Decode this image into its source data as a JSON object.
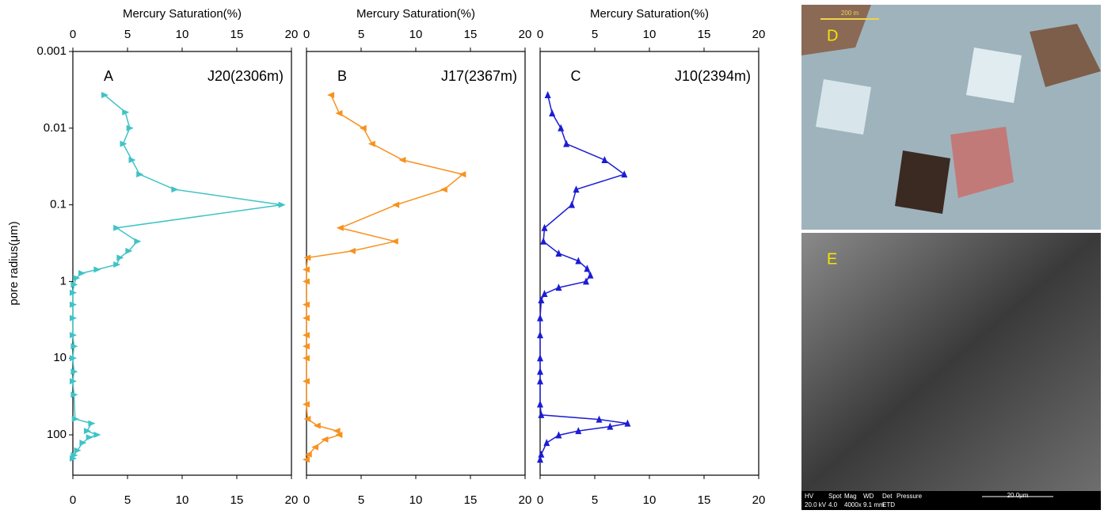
{
  "chart_data": [
    {
      "type": "line",
      "xlabel": "Mercury Saturation(%)",
      "ylabel": "pore radius(μm)",
      "xlim": [
        0,
        20
      ],
      "xticks": [
        0,
        5,
        10,
        15,
        20
      ],
      "ylim": [
        0.001,
        336
      ],
      "yticks": [
        0.001,
        0.01,
        0.1,
        1,
        10,
        100
      ],
      "log_y": true,
      "y_inverted": true,
      "marker": "triangle-right",
      "annotations": [
        "A",
        "J20(2306m)"
      ],
      "series": [
        {
          "color": "#3fc3c6",
          "x": [
            2.9,
            4.8,
            5.2,
            4.6,
            5.4,
            6.1,
            9.3,
            19.1,
            4.0,
            5.9,
            5.1,
            4.3,
            4.0,
            2.2,
            0.8,
            0.3,
            0.1,
            0,
            0,
            0,
            0,
            0.1,
            0,
            0.1,
            0,
            0.1,
            0.2,
            1.7,
            1.3,
            2.2,
            1.5,
            0.9,
            0.4,
            0.1,
            0
          ],
          "y": [
            0.0037,
            0.0062,
            0.01,
            0.016,
            0.026,
            0.04,
            0.063,
            0.1,
            0.2,
            0.3,
            0.4,
            0.49,
            0.6,
            0.7,
            0.78,
            0.9,
            1.1,
            1.4,
            2,
            3,
            5,
            7,
            10,
            15,
            20,
            30,
            62,
            71,
            89,
            100,
            108,
            127,
            160,
            185,
            203
          ]
        }
      ]
    },
    {
      "type": "line",
      "xlabel": "Mercury Saturation(%)",
      "xlim": [
        0,
        20
      ],
      "xticks": [
        0,
        5,
        10,
        15,
        20
      ],
      "ylim": [
        0.001,
        336
      ],
      "log_y": true,
      "y_inverted": true,
      "marker": "triangle-left",
      "annotations": [
        "B",
        "J17(2367m)"
      ],
      "series": [
        {
          "color": "#f7921e",
          "x": [
            2.25,
            3.0,
            5.2,
            6.0,
            8.8,
            14.3,
            12.6,
            8.2,
            3.1,
            8.1,
            4.2,
            0.1,
            0,
            0,
            0,
            0,
            0,
            0,
            0,
            0,
            0,
            0.1,
            1.0,
            2.8,
            3.0,
            1.7,
            0.8,
            0.2,
            0
          ],
          "y": [
            0.0037,
            0.0064,
            0.01,
            0.016,
            0.026,
            0.04,
            0.063,
            0.1,
            0.2,
            0.3,
            0.4,
            0.49,
            0.7,
            1,
            2,
            3,
            5,
            7,
            10,
            20,
            40,
            62,
            76,
            89,
            100,
            115,
            145,
            180,
            210
          ]
        }
      ]
    },
    {
      "type": "line",
      "xlabel": "Mercury Saturation(%)",
      "xlim": [
        0,
        20
      ],
      "xticks": [
        0,
        5,
        10,
        15,
        20
      ],
      "ylim": [
        0.001,
        336
      ],
      "log_y": true,
      "y_inverted": true,
      "marker": "triangle-up",
      "annotations": [
        "C",
        "J10(2394m)"
      ],
      "series": [
        {
          "color": "#1c1cd4",
          "x": [
            0.7,
            1.1,
            1.9,
            2.4,
            5.9,
            7.7,
            3.3,
            2.9,
            0.4,
            0.3,
            1.7,
            3.5,
            4.3,
            4.6,
            4.2,
            1.7,
            0.4,
            0.1,
            0,
            0,
            0,
            0,
            0,
            0,
            0.1,
            5.4,
            8.0,
            6.4,
            3.5,
            1.7,
            0.6,
            0.1,
            0
          ],
          "y": [
            0.0037,
            0.0064,
            0.01,
            0.016,
            0.026,
            0.04,
            0.063,
            0.1,
            0.2,
            0.3,
            0.43,
            0.54,
            0.68,
            0.83,
            1,
            1.2,
            1.45,
            1.75,
            3,
            5,
            10,
            15,
            20,
            40,
            55,
            63,
            71,
            78,
            89,
            101,
            127,
            180,
            210
          ]
        }
      ]
    }
  ],
  "images": [
    {
      "label": "D",
      "scale_bar": "200 m"
    },
    {
      "label": "E",
      "scale_bar": "20.0μm",
      "footer": [
        "HV",
        "Spot",
        "Mag",
        "WD",
        "Det",
        "Pressure",
        "20.0 kV",
        "4.0",
        "4000x",
        "9.1 mm",
        "ETD"
      ]
    }
  ]
}
